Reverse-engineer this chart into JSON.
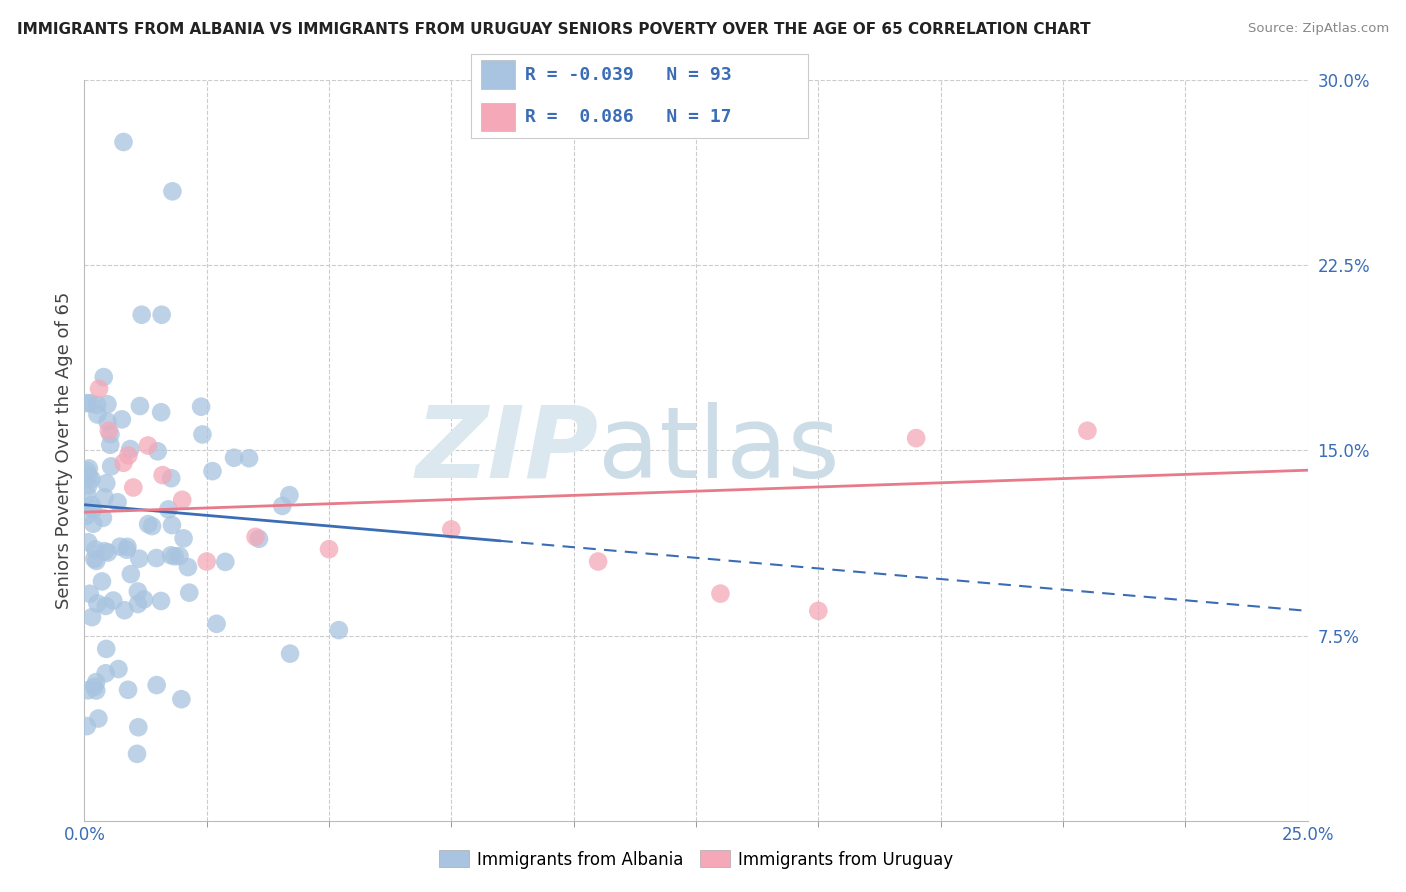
{
  "title": "IMMIGRANTS FROM ALBANIA VS IMMIGRANTS FROM URUGUAY SENIORS POVERTY OVER THE AGE OF 65 CORRELATION CHART",
  "source": "Source: ZipAtlas.com",
  "xlabel_show": [
    "0.0%",
    "25.0%"
  ],
  "xlabel_show_vals": [
    0.0,
    25.0
  ],
  "xlabel_minor_vals": [
    0.0,
    2.5,
    5.0,
    7.5,
    10.0,
    12.5,
    15.0,
    17.5,
    20.0,
    22.5,
    25.0
  ],
  "ylabel_ticks": [
    "7.5%",
    "15.0%",
    "22.5%",
    "30.0%"
  ],
  "ylabel_vals": [
    7.5,
    15.0,
    22.5,
    30.0
  ],
  "xlim": [
    0.0,
    25.0
  ],
  "ylim": [
    0.0,
    30.0
  ],
  "albania_R": -0.039,
  "albania_N": 93,
  "uruguay_R": 0.086,
  "uruguay_N": 17,
  "legend_label_albania": "Immigrants from Albania",
  "legend_label_uruguay": "Immigrants from Uruguay",
  "scatter_color_albania": "#a8c4e0",
  "scatter_color_uruguay": "#f4a8b8",
  "line_color_albania": "#3a6db5",
  "line_color_uruguay": "#e87a8a",
  "albania_line_start_x": 0.0,
  "albania_line_start_y": 12.8,
  "albania_line_end_x": 25.0,
  "albania_line_end_y": 8.5,
  "albania_solid_end_x": 8.5,
  "uruguay_line_start_x": 0.0,
  "uruguay_line_start_y": 12.5,
  "uruguay_line_end_x": 25.0,
  "uruguay_line_end_y": 14.2
}
